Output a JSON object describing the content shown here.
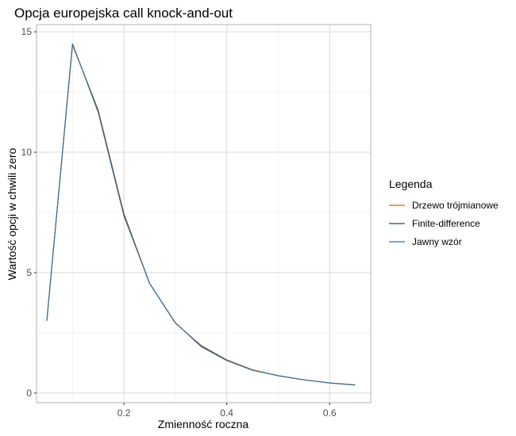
{
  "chart_data": {
    "type": "line",
    "title": "Opcja europejska call knock-and-out",
    "xlabel": "Zmienność roczna",
    "ylabel": "Wartość opcji w chwili zero",
    "xlim": [
      0.03,
      0.68
    ],
    "ylim": [
      -0.4,
      15.3
    ],
    "x_ticks": [
      0.2,
      0.4,
      0.6
    ],
    "x_tick_labels": [
      "0.2",
      "0.4",
      "0.6"
    ],
    "y_ticks": [
      0,
      5,
      10,
      15
    ],
    "y_tick_labels": [
      "0",
      "5",
      "10",
      "15"
    ],
    "x_minor_ticks": [
      0.1,
      0.3,
      0.5
    ],
    "y_minor_ticks": [
      2.5,
      7.5,
      12.5
    ],
    "grid": true,
    "legend": {
      "title": "Legenda",
      "position": "right"
    },
    "x": [
      0.05,
      0.1,
      0.15,
      0.2,
      0.25,
      0.3,
      0.35,
      0.4,
      0.45,
      0.5,
      0.55,
      0.6,
      0.65
    ],
    "series": [
      {
        "name": "Drzewo trójmianowe",
        "color": "#d95f02",
        "values": [
          3.0,
          14.45,
          11.75,
          7.45,
          4.55,
          2.9,
          1.98,
          1.38,
          0.97,
          0.72,
          0.55,
          0.42,
          0.33
        ]
      },
      {
        "name": "Finite-difference",
        "color": "#1b5e20",
        "values": [
          3.0,
          14.5,
          11.7,
          7.4,
          4.55,
          2.92,
          1.95,
          1.36,
          0.95,
          0.72,
          0.55,
          0.42,
          0.34
        ]
      },
      {
        "name": "Jawny wzór",
        "color": "#3a6ea5",
        "values": [
          3.0,
          14.5,
          11.65,
          7.35,
          4.55,
          2.92,
          1.93,
          1.35,
          0.95,
          0.72,
          0.55,
          0.42,
          0.34
        ]
      }
    ]
  }
}
